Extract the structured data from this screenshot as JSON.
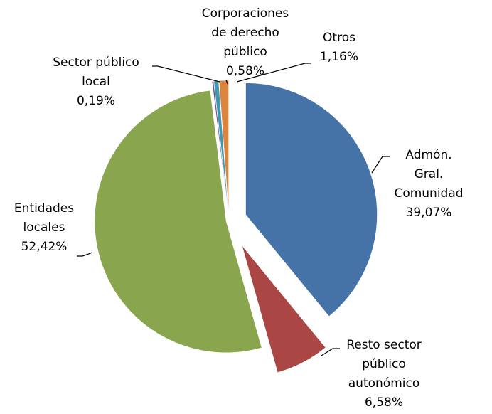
{
  "chart_data": {
    "type": "pie",
    "categories": [
      "Admón. Gral.\nComunidad",
      "Resto sector\npúblico\nautonómico",
      "Entidades\nlocales",
      "Sector público\nlocal",
      "Corporaciones\nde derecho\npúblico",
      "Otros"
    ],
    "values": [
      39.07,
      6.58,
      52.42,
      0.19,
      0.58,
      1.16
    ],
    "value_labels": [
      "39,07%",
      "6,58%",
      "52,42%",
      "0,19%",
      "0,58%",
      "1,16%"
    ],
    "colors": [
      "#4572a7",
      "#aa4643",
      "#89a54e",
      "#71588f",
      "#4198af",
      "#db843d"
    ]
  }
}
